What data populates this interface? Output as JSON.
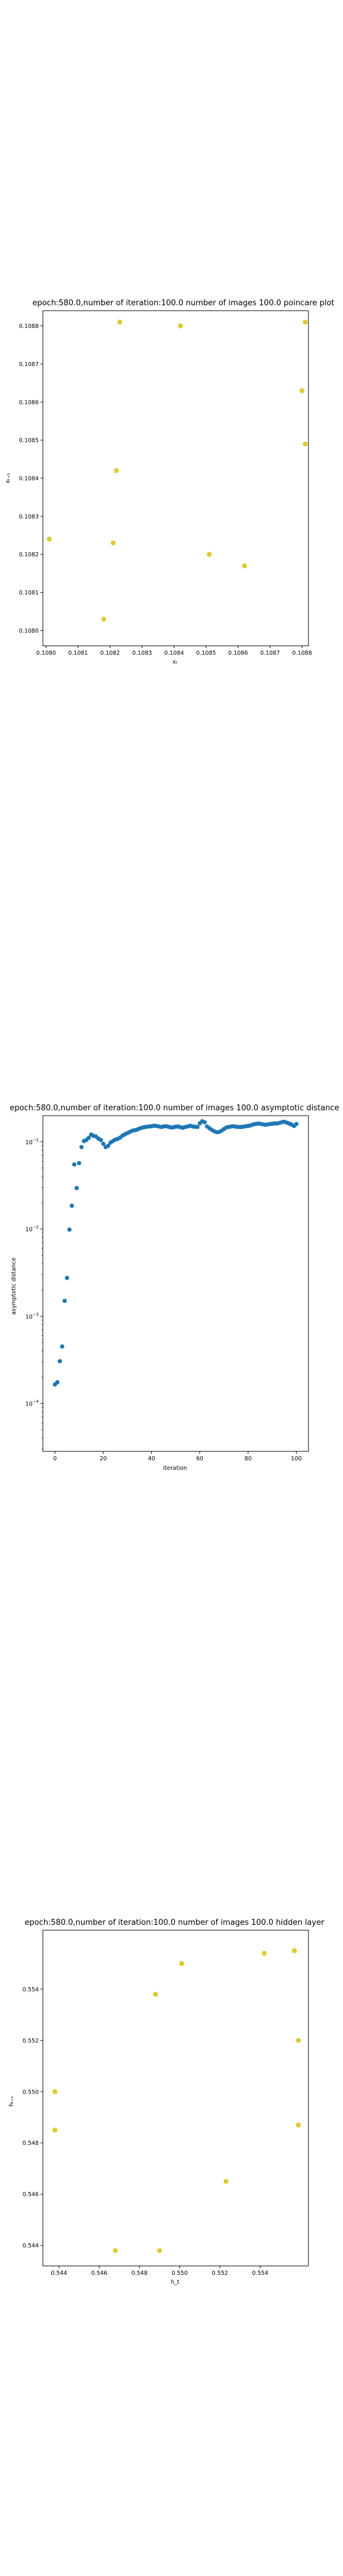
{
  "chart_data": [
    {
      "type": "scatter",
      "title": "epoch:580.0,number of iteration:100.0 number of images 100.0 poincare plot",
      "xlabel": "xₜ",
      "ylabel": "xₜ₊₁",
      "xlim": [
        0.10799,
        0.10882
      ],
      "ylim": [
        0.10796,
        0.10884
      ],
      "xticks": [
        0.108,
        0.1081,
        0.1082,
        0.1083,
        0.1084,
        0.1085,
        0.1086,
        0.1087,
        0.1088
      ],
      "yticks": [
        0.108,
        0.1081,
        0.1082,
        0.1083,
        0.1084,
        0.1085,
        0.1086,
        0.1087,
        0.1088
      ],
      "tick_decimals": 4,
      "log_y": false,
      "color": "#ddcc33",
      "points": [
        [
          0.10801,
          0.10824
        ],
        [
          0.10818,
          0.10803
        ],
        [
          0.10821,
          0.10823
        ],
        [
          0.10822,
          0.10842
        ],
        [
          0.10823,
          0.10881
        ],
        [
          0.10842,
          0.1088
        ],
        [
          0.10851,
          0.1082
        ],
        [
          0.10862,
          0.10817
        ],
        [
          0.1088,
          0.10863
        ],
        [
          0.10881,
          0.10849
        ],
        [
          0.10881,
          0.10881
        ]
      ]
    },
    {
      "type": "scatter",
      "title": "epoch:580.0,number of iteration:100.0  number of images 100.0 asymptotic distance",
      "xlabel": "iteration",
      "ylabel": "asymptotic distance",
      "xlim": [
        -5,
        105
      ],
      "log_y": true,
      "log_ylim": [
        -4.55,
        -0.7
      ],
      "yticks_exp": [
        -4,
        -3,
        -2,
        -1
      ],
      "xticks": [
        0,
        20,
        40,
        60,
        80,
        100
      ],
      "color": "#1f77b4",
      "y_values": [
        0.000165,
        0.000175,
        0.000305,
        0.00045,
        0.0015,
        0.00275,
        0.00985,
        0.0185,
        0.055,
        0.0295,
        0.057,
        0.087,
        0.102,
        0.105,
        0.111,
        0.121,
        0.117,
        0.115,
        0.109,
        0.105,
        0.095,
        0.087,
        0.09,
        0.098,
        0.102,
        0.106,
        0.108,
        0.112,
        0.118,
        0.122,
        0.126,
        0.13,
        0.134,
        0.136,
        0.138,
        0.142,
        0.145,
        0.147,
        0.149,
        0.15,
        0.151,
        0.153,
        0.152,
        0.15,
        0.148,
        0.15,
        0.151,
        0.149,
        0.146,
        0.147,
        0.149,
        0.15,
        0.147,
        0.145,
        0.148,
        0.15,
        0.153,
        0.15,
        0.149,
        0.148,
        0.163,
        0.172,
        0.168,
        0.15,
        0.143,
        0.137,
        0.132,
        0.129,
        0.13,
        0.134,
        0.14,
        0.146,
        0.148,
        0.15,
        0.151,
        0.149,
        0.148,
        0.148,
        0.149,
        0.151,
        0.152,
        0.154,
        0.158,
        0.16,
        0.162,
        0.161,
        0.159,
        0.157,
        0.158,
        0.16,
        0.161,
        0.163,
        0.162,
        0.165,
        0.168,
        0.17,
        0.166,
        0.162,
        0.158,
        0.152,
        0.16
      ]
    },
    {
      "type": "scatter",
      "title": "epoch:580.0,number of iteration:100.0  number of images 100.0 hidden layer",
      "xlabel": "h_t",
      "ylabel": "hₜ₊₁",
      "xlim": [
        0.5432,
        0.5564
      ],
      "ylim": [
        0.5432,
        0.5563
      ],
      "xticks": [
        0.544,
        0.546,
        0.548,
        0.55,
        0.552,
        0.554
      ],
      "yticks": [
        0.544,
        0.546,
        0.548,
        0.55,
        0.552,
        0.554
      ],
      "tick_decimals": 3,
      "log_y": false,
      "color": "#ddcc33",
      "points": [
        [
          0.5438,
          0.55
        ],
        [
          0.5438,
          0.5485
        ],
        [
          0.5468,
          0.5438
        ],
        [
          0.5488,
          0.5538
        ],
        [
          0.549,
          0.5438
        ],
        [
          0.5501,
          0.555
        ],
        [
          0.5523,
          0.5465
        ],
        [
          0.5542,
          0.5554
        ],
        [
          0.5557,
          0.5555
        ],
        [
          0.5559,
          0.552
        ],
        [
          0.5559,
          0.5487
        ]
      ]
    }
  ]
}
